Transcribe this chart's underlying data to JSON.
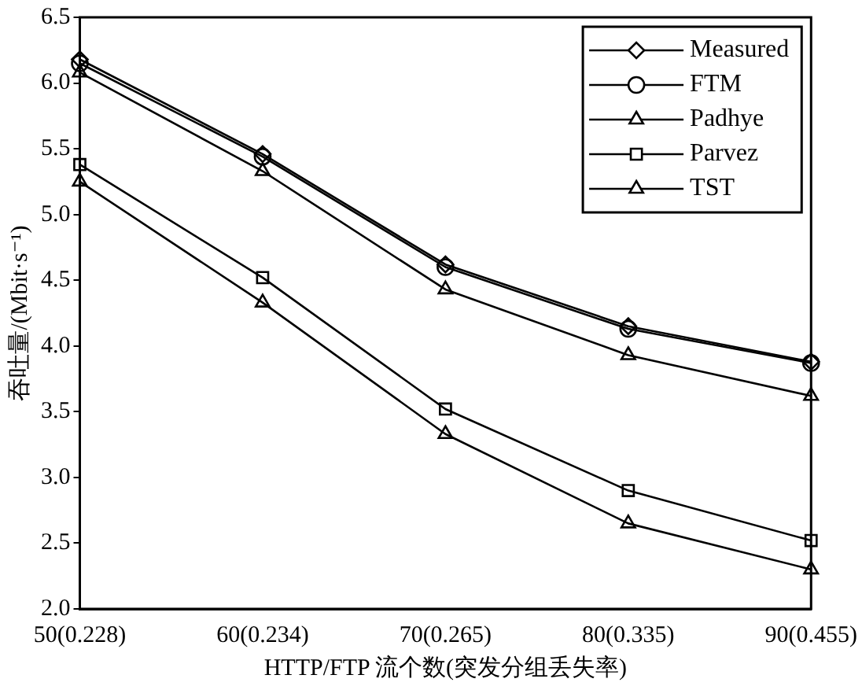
{
  "chart_data": {
    "type": "line",
    "xlabel": "HTTP/FTP 流个数(突发分组丢失率)",
    "ylabel": "吞吐量/(Mbit·s⁻¹)",
    "categories": [
      "50(0.228)",
      "60(0.234)",
      "70(0.265)",
      "80(0.335)",
      "90(0.455)"
    ],
    "ylim": [
      2,
      6.5
    ],
    "yticks": [
      {
        "value": 2,
        "label": "2.0"
      },
      2.5,
      {
        "value": 3,
        "label": "3.0"
      },
      3.5,
      {
        "value": 4,
        "label": "4.0"
      },
      4.5,
      {
        "value": 5,
        "label": "5.0"
      },
      5.5,
      {
        "value": 6,
        "label": "6.0"
      },
      6.5
    ],
    "grid": false,
    "legend": "top right",
    "line_style": "solid",
    "series": [
      {
        "name": "Measured",
        "color": "#000000",
        "marker": "diamond",
        "values": [
          6.18,
          5.46,
          4.62,
          4.15,
          3.88
        ]
      },
      {
        "name": "FTM",
        "color": "#000000",
        "marker": "circle",
        "values": [
          6.15,
          5.44,
          4.6,
          4.13,
          3.87
        ]
      },
      {
        "name": "Padhye",
        "color": "#000000",
        "marker": "triangle",
        "values": [
          6.08,
          5.33,
          4.43,
          3.93,
          3.62
        ]
      },
      {
        "name": "Parvez",
        "color": "#000000",
        "marker": "square",
        "values": [
          5.38,
          4.52,
          3.52,
          2.9,
          2.52
        ]
      },
      {
        "name": "TST",
        "color": "#000000",
        "marker": "triangle",
        "values": [
          5.25,
          4.33,
          3.33,
          2.65,
          2.3
        ]
      }
    ]
  }
}
